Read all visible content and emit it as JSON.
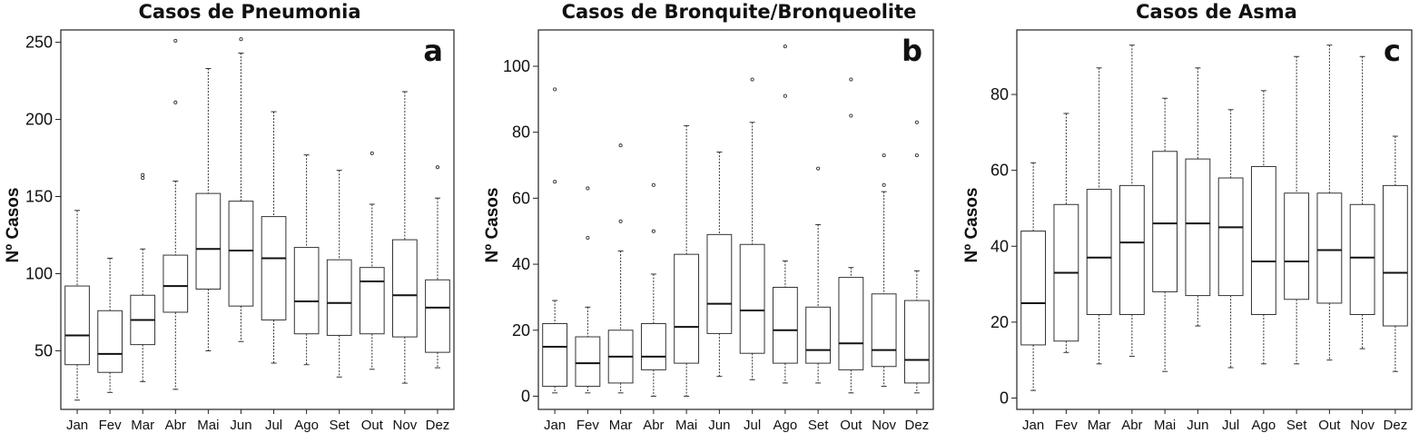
{
  "chart_data": [
    {
      "type": "box",
      "title": "Casos de Pneumonia",
      "panel_label": "a",
      "ylabel": "Nº Casos",
      "yticks": [
        50,
        100,
        150,
        200,
        250
      ],
      "ylim": [
        12,
        258
      ],
      "categories": [
        "Jan",
        "Fev",
        "Mar",
        "Abr",
        "Mai",
        "Jun",
        "Jul",
        "Ago",
        "Set",
        "Out",
        "Nov",
        "Dez"
      ],
      "boxes": [
        {
          "min": 18,
          "q1": 41,
          "median": 60,
          "q3": 92,
          "max": 141,
          "outliers": []
        },
        {
          "min": 23,
          "q1": 36,
          "median": 48,
          "q3": 76,
          "max": 110,
          "outliers": []
        },
        {
          "min": 30,
          "q1": 54,
          "median": 70,
          "q3": 86,
          "max": 116,
          "outliers": [
            162,
            164
          ]
        },
        {
          "min": 25,
          "q1": 75,
          "median": 92,
          "q3": 112,
          "max": 160,
          "outliers": [
            211,
            251
          ]
        },
        {
          "min": 50,
          "q1": 90,
          "median": 116,
          "q3": 152,
          "max": 233,
          "outliers": []
        },
        {
          "min": 56,
          "q1": 79,
          "median": 115,
          "q3": 147,
          "max": 243,
          "outliers": [
            252
          ]
        },
        {
          "min": 42,
          "q1": 70,
          "median": 110,
          "q3": 137,
          "max": 205,
          "outliers": []
        },
        {
          "min": 41,
          "q1": 61,
          "median": 82,
          "q3": 117,
          "max": 177,
          "outliers": []
        },
        {
          "min": 33,
          "q1": 60,
          "median": 81,
          "q3": 109,
          "max": 167,
          "outliers": []
        },
        {
          "min": 38,
          "q1": 61,
          "median": 95,
          "q3": 104,
          "max": 145,
          "outliers": [
            178
          ]
        },
        {
          "min": 29,
          "q1": 59,
          "median": 86,
          "q3": 122,
          "max": 218,
          "outliers": []
        },
        {
          "min": 39,
          "q1": 49,
          "median": 78,
          "q3": 96,
          "max": 149,
          "outliers": [
            169
          ]
        }
      ]
    },
    {
      "type": "box",
      "title": "Casos de Bronquite/Bronqueolite",
      "panel_label": "b",
      "ylabel": "Nº Casos",
      "yticks": [
        0,
        20,
        40,
        60,
        80,
        100
      ],
      "ylim": [
        -4,
        111
      ],
      "categories": [
        "Jan",
        "Fev",
        "Mar",
        "Abr",
        "Mai",
        "Jun",
        "Jul",
        "Ago",
        "Set",
        "Out",
        "Nov",
        "Dez"
      ],
      "boxes": [
        {
          "min": 1,
          "q1": 3,
          "median": 15,
          "q3": 22,
          "max": 29,
          "outliers": [
            65,
            93
          ]
        },
        {
          "min": 1,
          "q1": 3,
          "median": 10,
          "q3": 18,
          "max": 27,
          "outliers": [
            48,
            63
          ]
        },
        {
          "min": 1,
          "q1": 4,
          "median": 12,
          "q3": 20,
          "max": 44,
          "outliers": [
            53,
            76
          ]
        },
        {
          "min": 0,
          "q1": 8,
          "median": 12,
          "q3": 22,
          "max": 37,
          "outliers": [
            50,
            64
          ]
        },
        {
          "min": 0,
          "q1": 10,
          "median": 21,
          "q3": 43,
          "max": 82,
          "outliers": []
        },
        {
          "min": 6,
          "q1": 19,
          "median": 28,
          "q3": 49,
          "max": 74,
          "outliers": []
        },
        {
          "min": 5,
          "q1": 13,
          "median": 26,
          "q3": 46,
          "max": 83,
          "outliers": [
            96
          ]
        },
        {
          "min": 4,
          "q1": 10,
          "median": 20,
          "q3": 33,
          "max": 41,
          "outliers": [
            91,
            106
          ]
        },
        {
          "min": 4,
          "q1": 10,
          "median": 14,
          "q3": 27,
          "max": 52,
          "outliers": [
            69
          ]
        },
        {
          "min": 1,
          "q1": 8,
          "median": 16,
          "q3": 36,
          "max": 39,
          "outliers": [
            85,
            96
          ]
        },
        {
          "min": 3,
          "q1": 9,
          "median": 14,
          "q3": 31,
          "max": 62,
          "outliers": [
            64,
            73
          ]
        },
        {
          "min": 1,
          "q1": 4,
          "median": 11,
          "q3": 29,
          "max": 38,
          "outliers": [
            73,
            83
          ]
        }
      ]
    },
    {
      "type": "box",
      "title": "Casos de Asma",
      "panel_label": "c",
      "ylabel": "Nº Casos",
      "yticks": [
        0,
        20,
        40,
        60,
        80
      ],
      "ylim": [
        -3,
        97
      ],
      "categories": [
        "Jan",
        "Fev",
        "Mar",
        "Abr",
        "Mai",
        "Jun",
        "Jul",
        "Ago",
        "Set",
        "Out",
        "Nov",
        "Dez"
      ],
      "boxes": [
        {
          "min": 2,
          "q1": 14,
          "median": 25,
          "q3": 44,
          "max": 62,
          "outliers": []
        },
        {
          "min": 12,
          "q1": 15,
          "median": 33,
          "q3": 51,
          "max": 75,
          "outliers": []
        },
        {
          "min": 9,
          "q1": 22,
          "median": 37,
          "q3": 55,
          "max": 87,
          "outliers": []
        },
        {
          "min": 11,
          "q1": 22,
          "median": 41,
          "q3": 56,
          "max": 93,
          "outliers": []
        },
        {
          "min": 7,
          "q1": 28,
          "median": 46,
          "q3": 65,
          "max": 79,
          "outliers": []
        },
        {
          "min": 19,
          "q1": 27,
          "median": 46,
          "q3": 63,
          "max": 87,
          "outliers": []
        },
        {
          "min": 8,
          "q1": 27,
          "median": 45,
          "q3": 58,
          "max": 76,
          "outliers": []
        },
        {
          "min": 9,
          "q1": 22,
          "median": 36,
          "q3": 61,
          "max": 81,
          "outliers": []
        },
        {
          "min": 9,
          "q1": 26,
          "median": 36,
          "q3": 54,
          "max": 90,
          "outliers": []
        },
        {
          "min": 10,
          "q1": 25,
          "median": 39,
          "q3": 54,
          "max": 93,
          "outliers": []
        },
        {
          "min": 13,
          "q1": 22,
          "median": 37,
          "q3": 51,
          "max": 90,
          "outliers": []
        },
        {
          "min": 7,
          "q1": 19,
          "median": 33,
          "q3": 56,
          "max": 69,
          "outliers": []
        }
      ]
    }
  ]
}
